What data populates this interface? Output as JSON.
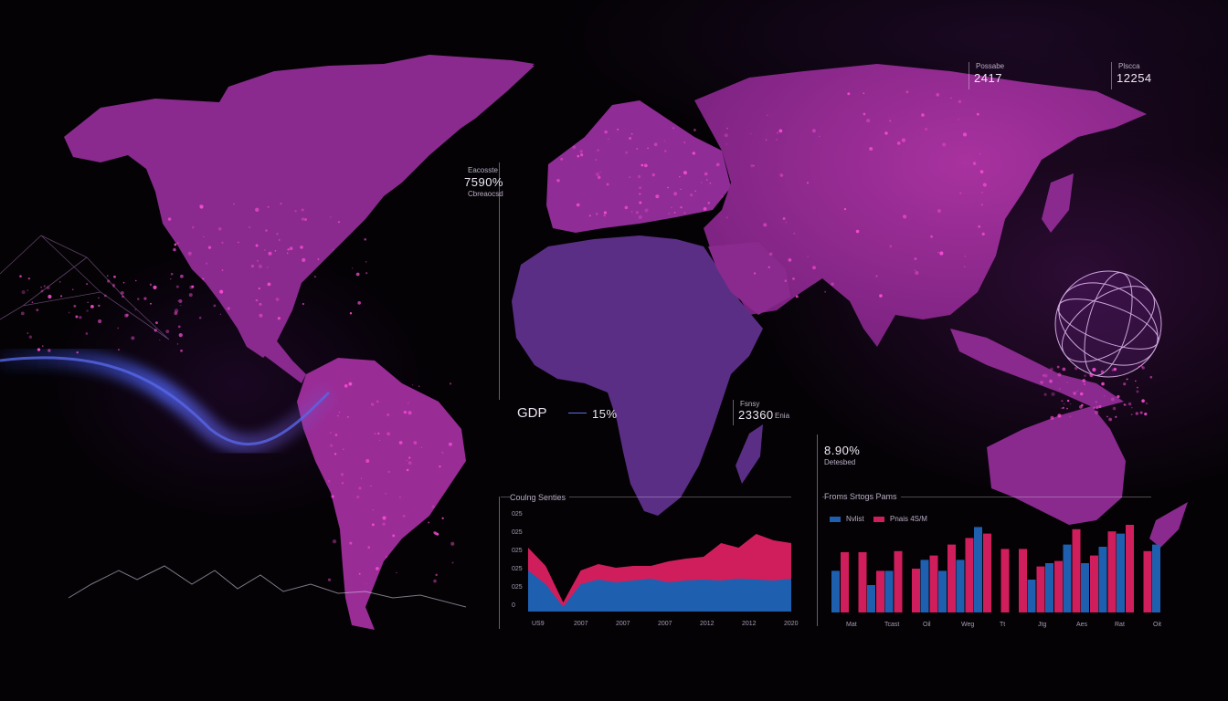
{
  "colors": {
    "land": "#8a2a8e",
    "land_africa": "#5b2e86",
    "glow": "#ff4fd8",
    "series_blue": "#1f5fb0",
    "series_red": "#d01e5c",
    "background": "#050306"
  },
  "icons": [
    "globe-orbit-icon",
    "network-lines-graphic",
    "wave-ribbon-graphic"
  ],
  "callouts": {
    "top_left_stat": {
      "caption": "Eacosste",
      "value": "7590%",
      "sub": "Cbreaocsd"
    },
    "top_right_1": {
      "caption": "Possabe",
      "value": "2417"
    },
    "top_right_2": {
      "caption": "Plscca",
      "value": "12254"
    },
    "gdp": {
      "label": "GDP",
      "value": "15%"
    },
    "mid_stat": {
      "caption": "Fsnsy",
      "value": "23360",
      "unit": "Enia"
    },
    "right_stat": {
      "value": "8.90%",
      "sub": "Detesbed"
    }
  },
  "chart_data": [
    {
      "type": "area",
      "title": "Coulng Senties",
      "yticks": [
        "025",
        "025",
        "025",
        "025",
        "025",
        "0"
      ],
      "xticks": [
        "US9",
        "2007",
        "2007",
        "2007",
        "2012",
        "2012",
        "2020"
      ],
      "series": [
        {
          "color": "#1f5fb0",
          "values": [
            0.45,
            0.3,
            0.05,
            0.3,
            0.35,
            0.32,
            0.34,
            0.36,
            0.32,
            0.34,
            0.35,
            0.34,
            0.36,
            0.35,
            0.34,
            0.36
          ]
        },
        {
          "color": "#d01e5c",
          "values": [
            0.7,
            0.5,
            0.1,
            0.45,
            0.52,
            0.48,
            0.5,
            0.5,
            0.55,
            0.58,
            0.6,
            0.75,
            0.7,
            0.85,
            0.78,
            0.75
          ]
        }
      ]
    },
    {
      "type": "bar",
      "title": "Froms Srtogs Pams",
      "legend": [
        "Nvlist",
        "Pnais 4S/M"
      ],
      "xticks": [
        "Mat",
        "Tcast",
        "Oil",
        "Weg",
        "Tt",
        "Jtg",
        "Aes",
        "Rat",
        "Oit"
      ],
      "series": [
        {
          "color": "#1f5fb0",
          "values": [
            0.38,
            0,
            0.25,
            0.38,
            0,
            0.48,
            0.38,
            0.48,
            0.78,
            0,
            0,
            0.3,
            0.45,
            0.62,
            0.45,
            0.6,
            0.72,
            0,
            0.62
          ]
        },
        {
          "color": "#d01e5c",
          "values": [
            0.55,
            0.55,
            0.38,
            0.56,
            0.4,
            0.52,
            0.62,
            0.68,
            0.72,
            0.58,
            0.58,
            0.42,
            0.47,
            0.76,
            0.52,
            0.74,
            0.8,
            0.56,
            0
          ]
        }
      ]
    }
  ]
}
